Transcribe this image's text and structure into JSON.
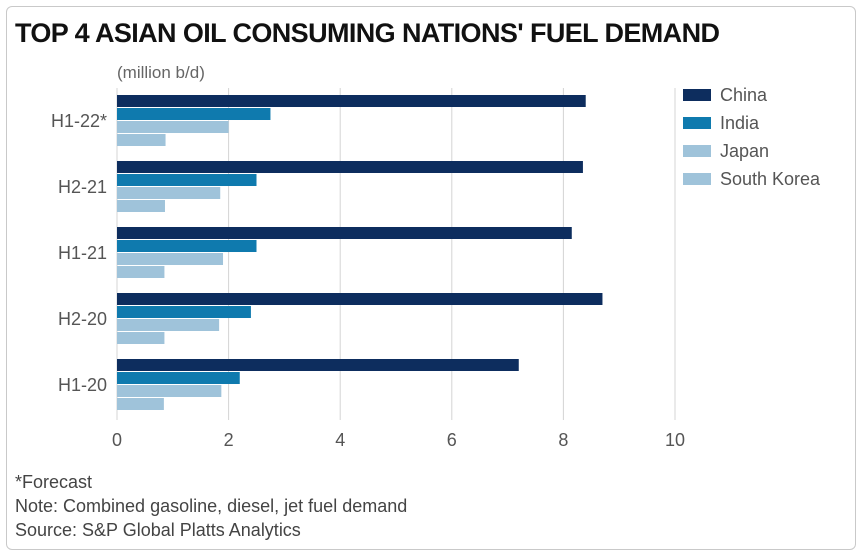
{
  "chart_data": {
    "type": "bar",
    "orientation": "horizontal",
    "title": "TOP 4 ASIAN OIL CONSUMING NATIONS' FUEL DEMAND",
    "unit_label": "(million b/d)",
    "categories": [
      "H1-22*",
      "H2-21",
      "H1-21",
      "H2-20",
      "H1-20"
    ],
    "series": [
      {
        "name": "China",
        "color": "#0d2d5e",
        "values": [
          8.4,
          8.35,
          8.15,
          8.7,
          7.2
        ]
      },
      {
        "name": "India",
        "color": "#0f7aae",
        "values": [
          2.75,
          2.5,
          2.5,
          2.4,
          2.2
        ]
      },
      {
        "name": "Japan",
        "color": "#9fc3da",
        "values": [
          2.0,
          1.85,
          1.9,
          1.83,
          1.87
        ]
      },
      {
        "name": "South Korea",
        "color": "#9fc3da",
        "values": [
          0.87,
          0.86,
          0.85,
          0.85,
          0.84
        ]
      }
    ],
    "xlim": [
      0,
      10
    ],
    "xticks": [
      "0",
      "2",
      "4",
      "6",
      "8",
      "10"
    ],
    "legend_position": "right",
    "grid": "vertical"
  },
  "footnotes": {
    "forecast": "*Forecast",
    "note": "Note: Combined gasoline, diesel, jet fuel demand",
    "source": "Source: S&P Global Platts Analytics"
  }
}
